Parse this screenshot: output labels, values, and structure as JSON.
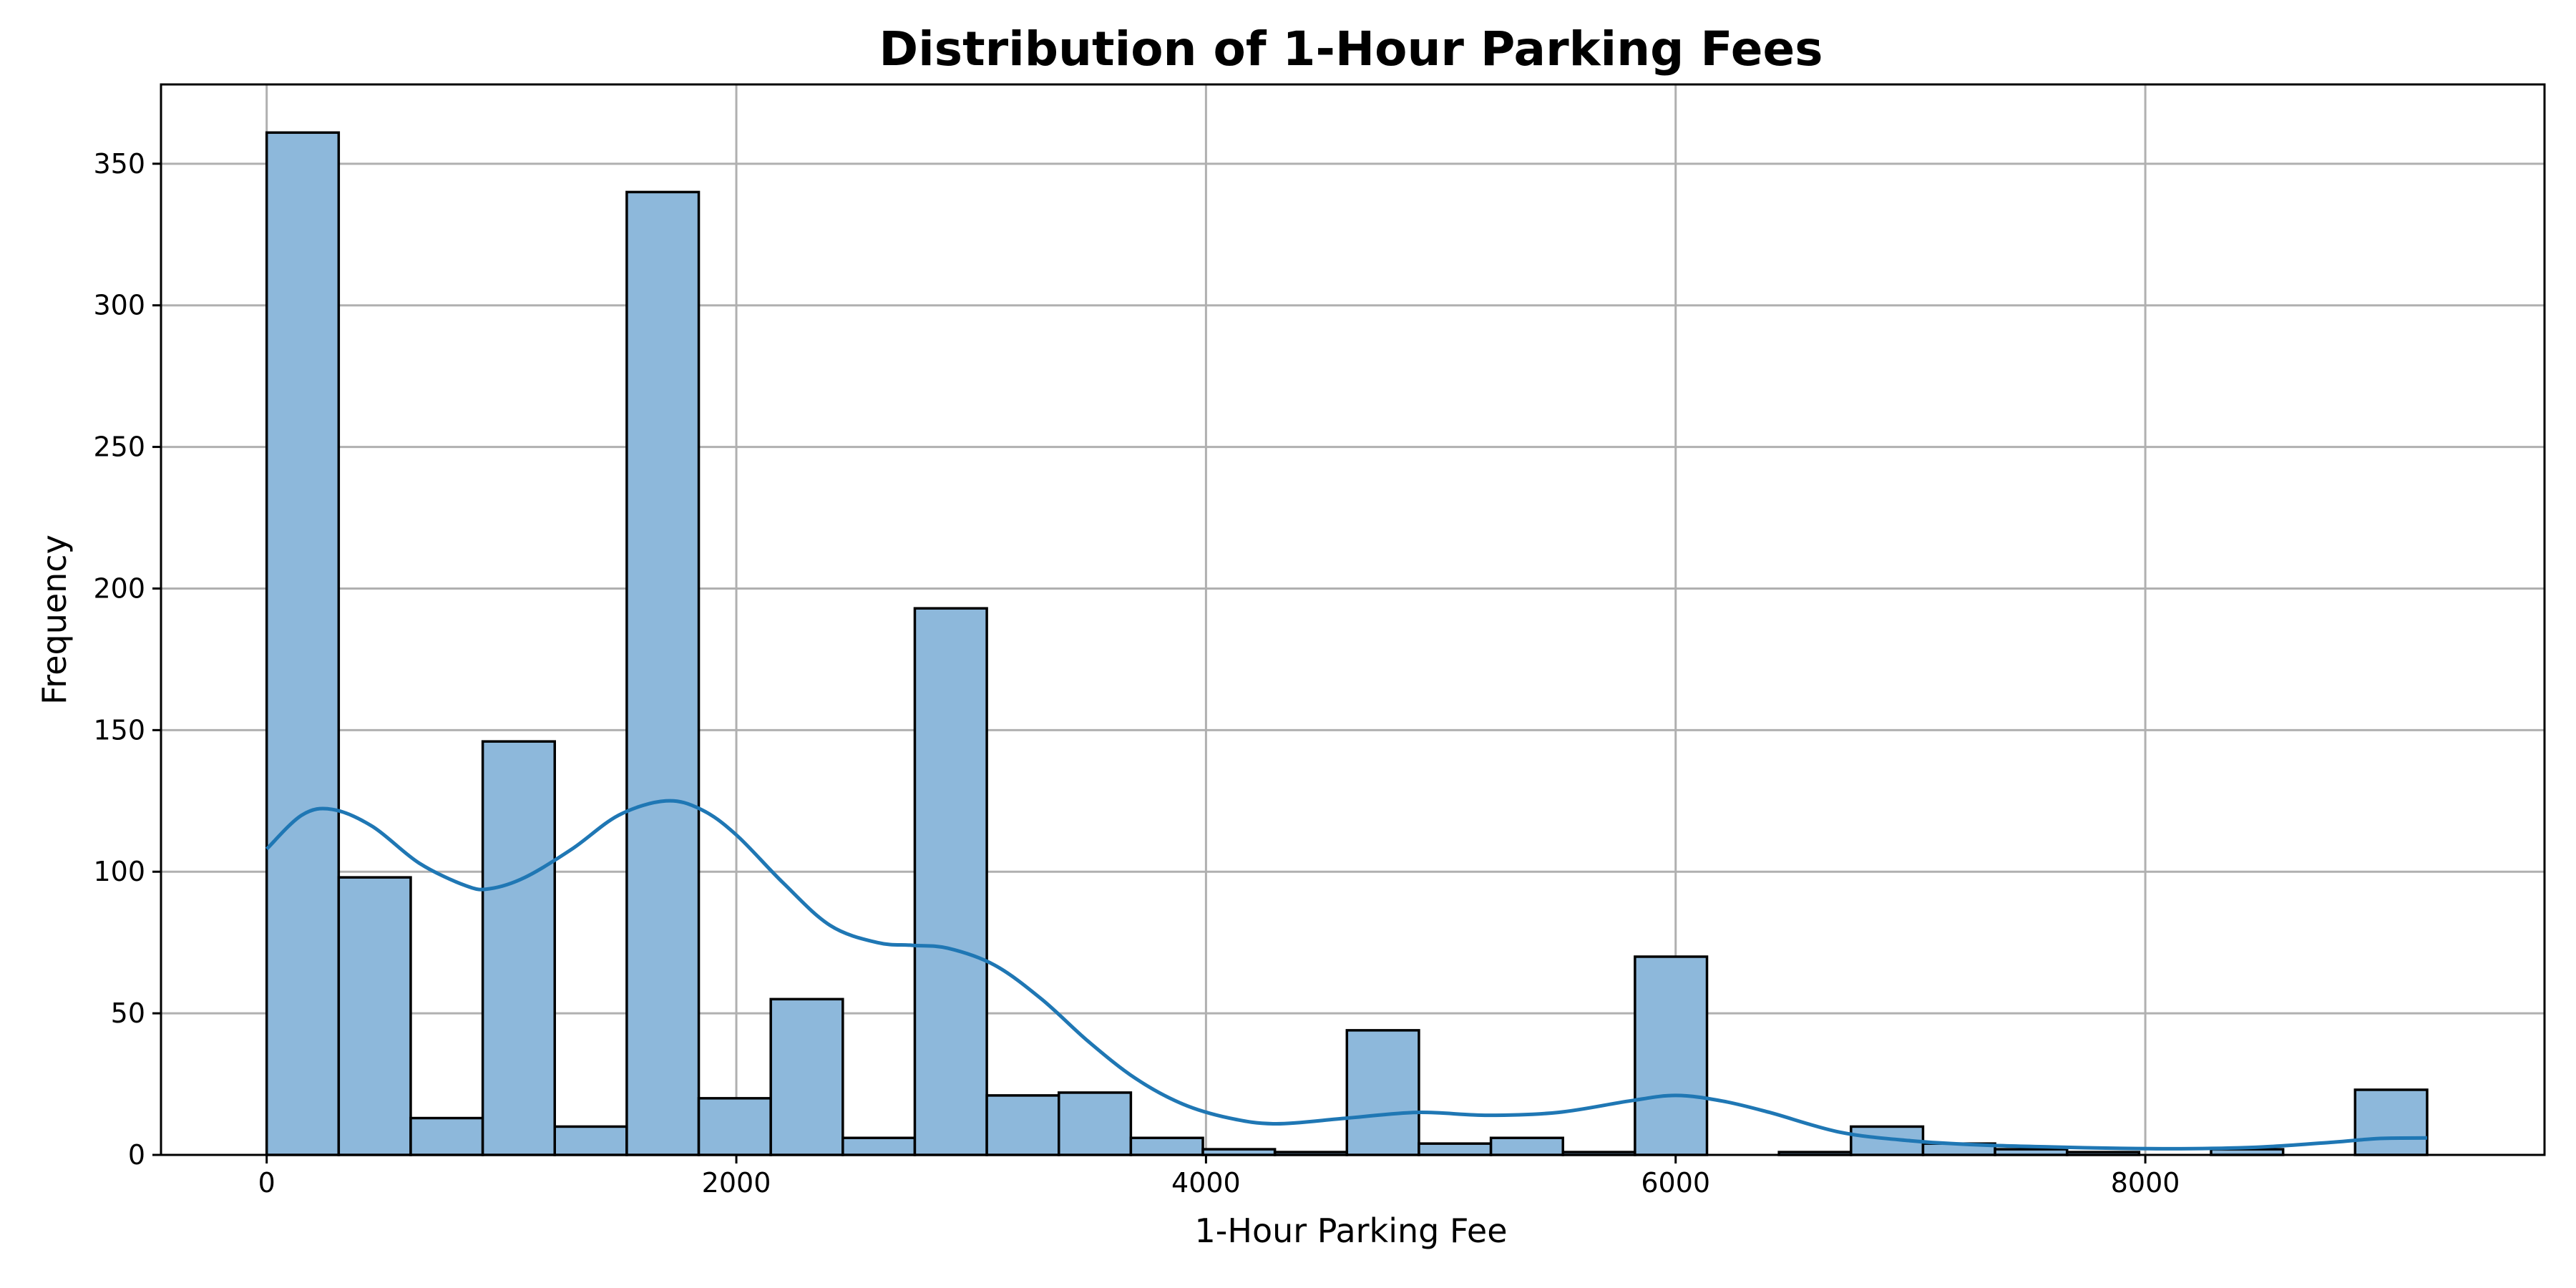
{
  "chart_data": {
    "type": "bar",
    "title": "Distribution of 1-Hour Parking Fees",
    "xlabel": "1-Hour Parking Fee",
    "ylabel": "Frequency",
    "xlim": [
      -450,
      9700
    ],
    "ylim": [
      0,
      378
    ],
    "x_ticks": [
      0,
      2000,
      4000,
      6000,
      8000
    ],
    "x_tick_labels": [
      "0",
      "2000",
      "4000",
      "6000",
      "8000"
    ],
    "y_ticks": [
      0,
      50,
      100,
      150,
      200,
      250,
      300,
      350
    ],
    "y_tick_labels": [
      "0",
      "50",
      "100",
      "150",
      "200",
      "250",
      "300",
      "350"
    ],
    "grid": true,
    "bin_start": 0,
    "bin_width": 306.67,
    "values": [
      361,
      98,
      13,
      146,
      10,
      340,
      20,
      55,
      6,
      193,
      21,
      22,
      6,
      2,
      1,
      44,
      4,
      6,
      1,
      70,
      0,
      1,
      10,
      4,
      2,
      1,
      0,
      2,
      0,
      23
    ],
    "kde": {
      "x": [
        0,
        150,
        280,
        450,
        650,
        850,
        950,
        1100,
        1300,
        1500,
        1700,
        1850,
        2000,
        2200,
        2400,
        2600,
        2750,
        2900,
        3100,
        3300,
        3500,
        3700,
        3900,
        4100,
        4300,
        4600,
        4900,
        5200,
        5500,
        5800,
        6000,
        6200,
        6400,
        6700,
        7000,
        7300,
        7600,
        7900,
        8200,
        8500,
        8800,
        9000,
        9200
      ],
      "y": [
        108,
        120,
        122,
        116,
        103,
        95,
        94,
        98,
        108,
        120,
        125,
        122,
        113,
        96,
        81,
        75,
        74,
        73,
        67,
        55,
        40,
        27,
        18,
        13,
        11,
        13,
        15,
        14,
        15,
        19,
        21,
        19,
        15,
        8,
        5,
        3.5,
        2.8,
        2.3,
        2.2,
        2.8,
        4.5,
        5.8,
        6
      ]
    },
    "colors": {
      "bar_fill": "#8db8db",
      "bar_edge": "#000000",
      "kde_line": "#1f77b4",
      "grid": "#b0b0b0"
    }
  }
}
